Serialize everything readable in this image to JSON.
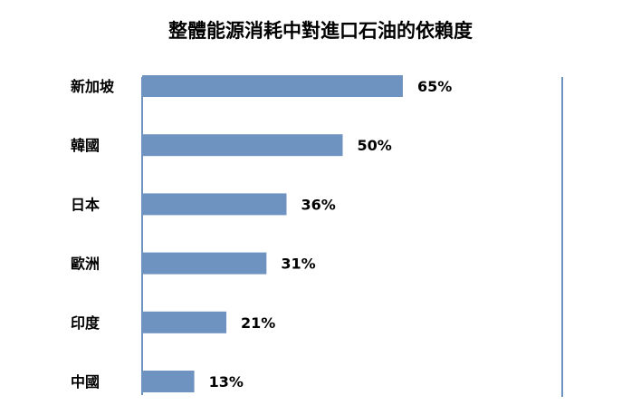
{
  "chart_data": {
    "type": "bar",
    "orientation": "horizontal",
    "title": "整體能源消耗中對進口石油的依賴度",
    "categories": [
      "新加坡",
      "韓國",
      "日本",
      "歐洲",
      "印度",
      "中國"
    ],
    "values": [
      65,
      50,
      36,
      31,
      21,
      13
    ],
    "value_labels": [
      "65%",
      "50%",
      "36%",
      "31%",
      "21%",
      "13%"
    ],
    "xlim": [
      0,
      100
    ],
    "grid": false,
    "legend": "none",
    "bar_color": "#6f93c0",
    "axis_color": "#6f93c0"
  }
}
